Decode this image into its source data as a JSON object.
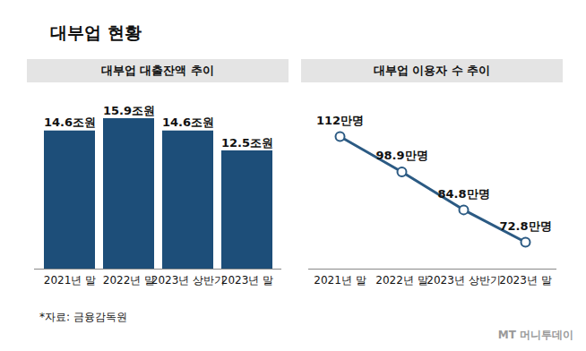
{
  "title": "대부업 현황",
  "source": "*자료: 금융감독원",
  "logo": "MT 머니투데이",
  "chart_data": [
    {
      "type": "bar",
      "title": "대부업 대출잔액 추이",
      "categories": [
        "2021년 말",
        "2022년 말",
        "2023년 상반기",
        "2023년 말"
      ],
      "values": [
        14.6,
        15.9,
        14.6,
        12.5
      ],
      "value_labels": [
        "14.6조원",
        "15.9조원",
        "14.6조원",
        "12.5조원"
      ],
      "color": "#1d4e79",
      "data_labels": true,
      "tick_labels": "x"
    },
    {
      "type": "line",
      "title": "대부업 이용자 수 추이",
      "categories": [
        "2021년 말",
        "2022년 말",
        "2023년 상반기",
        "2023년 말"
      ],
      "values": [
        112,
        98.9,
        84.8,
        72.8
      ],
      "value_labels": [
        "112만명",
        "98.9만명",
        "84.8만명",
        "72.8만명"
      ],
      "color": "#2b5a83",
      "marker": "circle",
      "data_labels": true,
      "tick_labels": "x"
    }
  ]
}
